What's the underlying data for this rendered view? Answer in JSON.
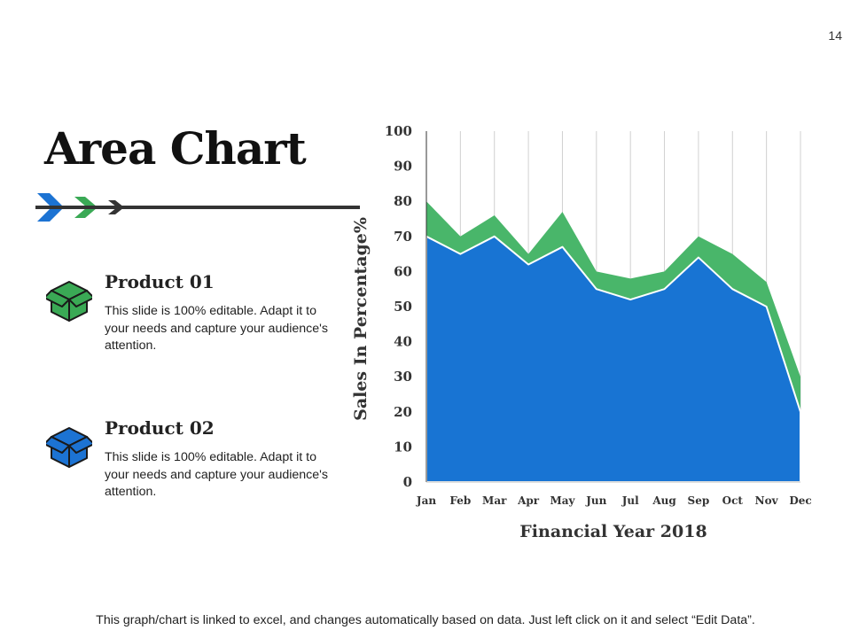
{
  "page_number": "14",
  "title": "Area Chart",
  "colors": {
    "product1": "#3aa955",
    "product2": "#1c73d3",
    "series_product1": "#49b66a",
    "series_product2": "#1874d3",
    "gridline": "#d0d0d0",
    "arrow_blue": "#1c73d3",
    "arrow_green": "#3aa955",
    "arrow_dark": "#333333"
  },
  "products": [
    {
      "name": "Product 01",
      "description": "This slide is 100% editable. Adapt it to your needs and capture your audience's attention.",
      "icon": "box-icon-green"
    },
    {
      "name": "Product 02",
      "description": "This slide is 100% editable. Adapt it to your needs and capture your audience's attention.",
      "icon": "box-icon-blue"
    }
  ],
  "footer_note": "This graph/chart is linked to excel, and changes automatically  based on data. Just left click on it and select “Edit Data”.",
  "chart_data": {
    "type": "area",
    "stacked": false,
    "categories": [
      "Jan",
      "Feb",
      "Mar",
      "Apr",
      "May",
      "Jun",
      "Jul",
      "Aug",
      "Sep",
      "Oct",
      "Nov",
      "Dec"
    ],
    "series": [
      {
        "name": "Product 01",
        "values": [
          80,
          70,
          76,
          65,
          77,
          60,
          58,
          60,
          70,
          65,
          57,
          30
        ]
      },
      {
        "name": "Product 02",
        "values": [
          70,
          65,
          70,
          62,
          67,
          55,
          52,
          55,
          64,
          55,
          50,
          20
        ]
      }
    ],
    "title": "",
    "xlabel": "Financial Year 2018",
    "ylabel": "Sales In Percentage%",
    "ylim": [
      0,
      100
    ],
    "yticks": [
      0,
      10,
      20,
      30,
      40,
      50,
      60,
      70,
      80,
      90,
      100
    ],
    "grid": "vertical",
    "legend": "none"
  }
}
